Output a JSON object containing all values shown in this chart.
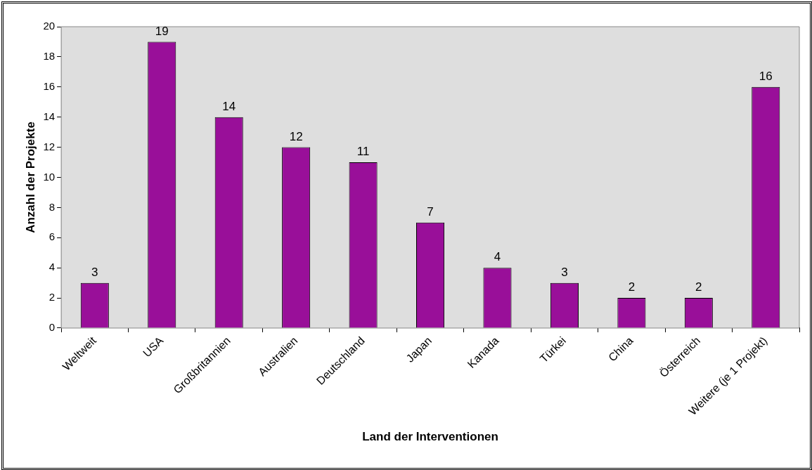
{
  "chart_data": {
    "type": "bar",
    "xlabel": "Land der Interventionen",
    "ylabel": "Anzahl der Projekte",
    "categories": [
      "Weltweit",
      "USA",
      "Großbritannien",
      "Australien",
      "Deutschland",
      "Japan",
      "Kanada",
      "Türkei",
      "China",
      "Österreich",
      "Weitere (je 1 Projekt)"
    ],
    "values": [
      3,
      19,
      14,
      12,
      11,
      7,
      4,
      3,
      2,
      2,
      16
    ],
    "color": "#990f99",
    "ylim": [
      0,
      20
    ],
    "yticks": [
      0,
      2,
      4,
      6,
      8,
      10,
      12,
      14,
      16,
      18,
      20
    ],
    "grid": false,
    "legend": false,
    "data_labels": true
  }
}
